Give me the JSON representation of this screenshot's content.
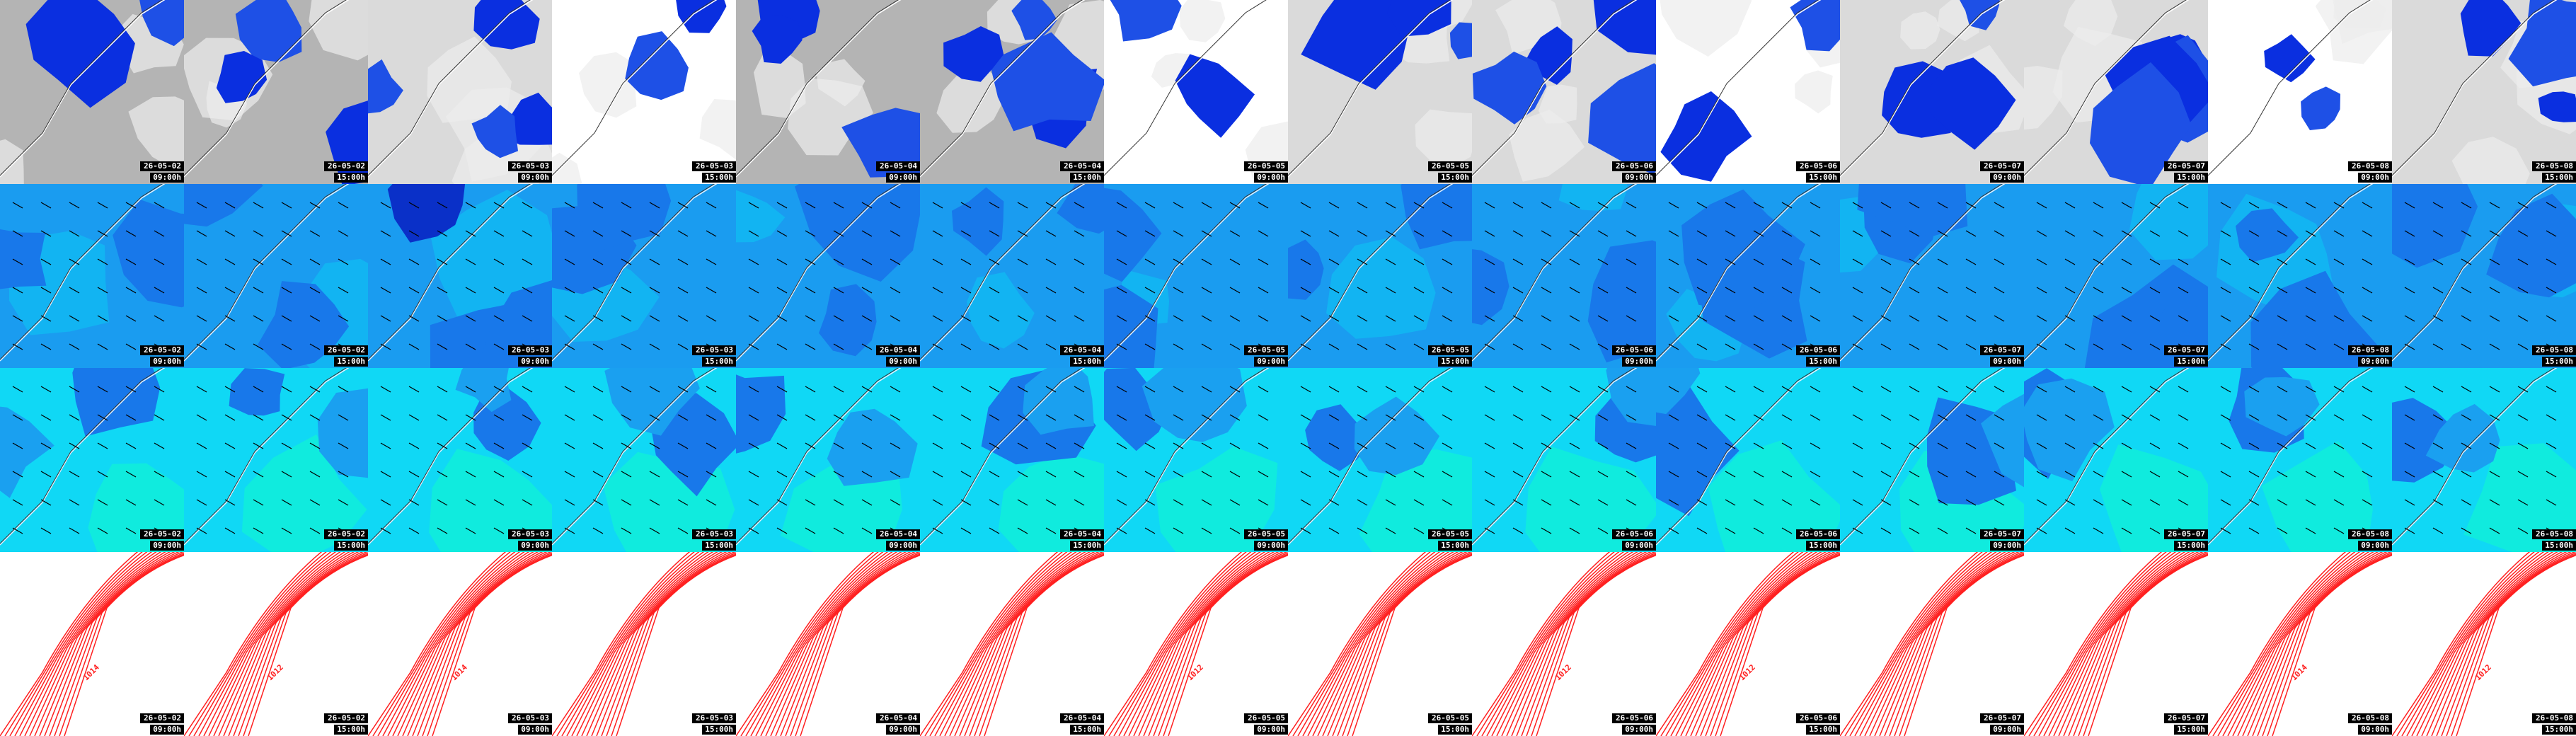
{
  "columns": [
    {
      "date": "26-05-02",
      "time": "09:00h",
      "isobar_label": "1014"
    },
    {
      "date": "26-05-02",
      "time": "15:00h",
      "isobar_label": "1012"
    },
    {
      "date": "26-05-03",
      "time": "09:00h",
      "isobar_label": "1014"
    },
    {
      "date": "26-05-03",
      "time": "15:00h"
    },
    {
      "date": "26-05-04",
      "time": "09:00h"
    },
    {
      "date": "26-05-04",
      "time": "15:00h"
    },
    {
      "date": "26-05-05",
      "time": "09:00h",
      "isobar_label": "1012"
    },
    {
      "date": "26-05-05",
      "time": "15:00h"
    },
    {
      "date": "26-05-06",
      "time": "09:00h",
      "isobar_label": "1012"
    },
    {
      "date": "26-05-06",
      "time": "15:00h",
      "isobar_label": "1012"
    },
    {
      "date": "26-05-07",
      "time": "09:00h"
    },
    {
      "date": "26-05-07",
      "time": "15:00h"
    },
    {
      "date": "26-05-08",
      "time": "09:00h",
      "isobar_label": "1014"
    },
    {
      "date": "26-05-08",
      "time": "15:00h",
      "isobar_label": "1012"
    }
  ]
}
